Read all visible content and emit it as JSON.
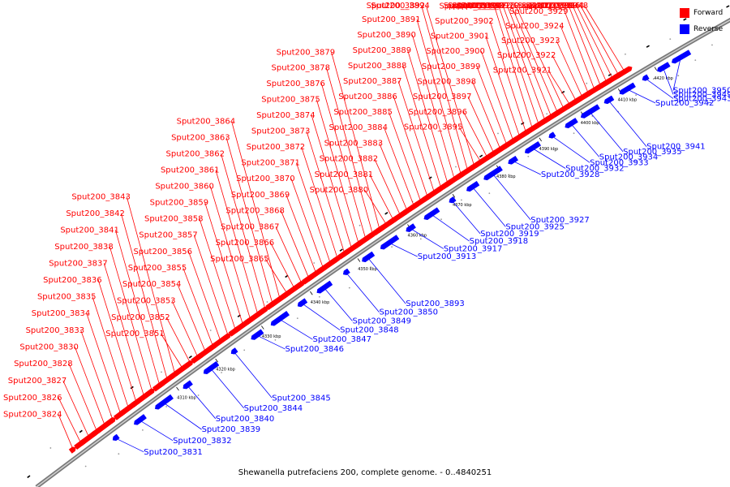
{
  "caption": "Shewanella putrefaciens 200, complete genome. - 0..4840251",
  "legend": {
    "forward": {
      "label": "Forward",
      "color": "#ff0000"
    },
    "reverse": {
      "label": "Reverse",
      "color": "#0000ff"
    }
  },
  "ticks": [
    "4310 kbp",
    "4320 kbp",
    "4330 kbp",
    "4340 kbp",
    "4350 kbp",
    "4360 kbp",
    "4370 kbp",
    "4380 kbp",
    "4390 kbp",
    "4400 kbp",
    "4410 kbp",
    "4420 kbp"
  ],
  "forward_genes": [
    "Sput200_3824",
    "Sput200_3826",
    "Sput200_3827",
    "Sput200_3828",
    "Sput200_3830",
    "Sput200_3833",
    "Sput200_3834",
    "Sput200_3835",
    "Sput200_3836",
    "Sput200_3837",
    "Sput200_3838",
    "Sput200_3841",
    "Sput200_3842",
    "Sput200_3843",
    "Sput200_3851",
    "Sput200_3852",
    "Sput200_3853",
    "Sput200_3854",
    "Sput200_3855",
    "Sput200_3856",
    "Sput200_3857",
    "Sput200_3858",
    "Sput200_3859",
    "Sput200_3860",
    "Sput200_3861",
    "Sput200_3862",
    "Sput200_3863",
    "Sput200_3864",
    "Sput200_3865",
    "Sput200_3866",
    "Sput200_3867",
    "Sput200_3868",
    "Sput200_3869",
    "Sput200_3870",
    "Sput200_3871",
    "Sput200_3872",
    "Sput200_3873",
    "Sput200_3874",
    "Sput200_3875",
    "Sput200_3876",
    "Sput200_3878",
    "Sput200_3879",
    "Sput200_3880",
    "Sput200_3881",
    "Sput200_3882",
    "Sput200_3883",
    "Sput200_3884",
    "Sput200_3885",
    "Sput200_3886",
    "Sput200_3887",
    "Sput200_3888",
    "Sput200_3889",
    "Sput200_3890",
    "Sput200_3891",
    "Sput200_3892",
    "Sput200_3894",
    "Sput200_3895",
    "Sput200_3896",
    "Sput200_3897",
    "Sput200_3898",
    "Sput200_3899",
    "Sput200_3900",
    "Sput200_3901",
    "Sput200_3902",
    "Sput200_3903",
    "Sput200_3904",
    "Sput200_3907",
    "Sput200_3912",
    "Sput200_3916",
    "Sput200_3920",
    "Sput200_3921",
    "Sput200_3922",
    "Sput200_3923",
    "Sput200_3924",
    "Sput200_3929",
    "Sput200_3930",
    "Sput200_3931",
    "Sput200_3936",
    "Sput200_3944",
    "Sput200_3948"
  ],
  "reverse_genes": [
    "Sput200_3831",
    "Sput200_3832",
    "Sput200_3839",
    "Sput200_3840",
    "Sput200_3844",
    "Sput200_3845",
    "Sput200_3846",
    "Sput200_3847",
    "Sput200_3848",
    "Sput200_3849",
    "Sput200_3850",
    "Sput200_3893",
    "Sput200_3913",
    "Sput200_3917",
    "Sput200_3918",
    "Sput200_3919",
    "Sput200_3925",
    "Sput200_3927",
    "Sput200_3928",
    "Sput200_3932",
    "Sput200_3933",
    "Sput200_3934",
    "Sput200_3935",
    "Sput200_3941",
    "Sput200_3942",
    "Sput200_3943",
    "Sput200_3949",
    "Sput200_3950"
  ]
}
